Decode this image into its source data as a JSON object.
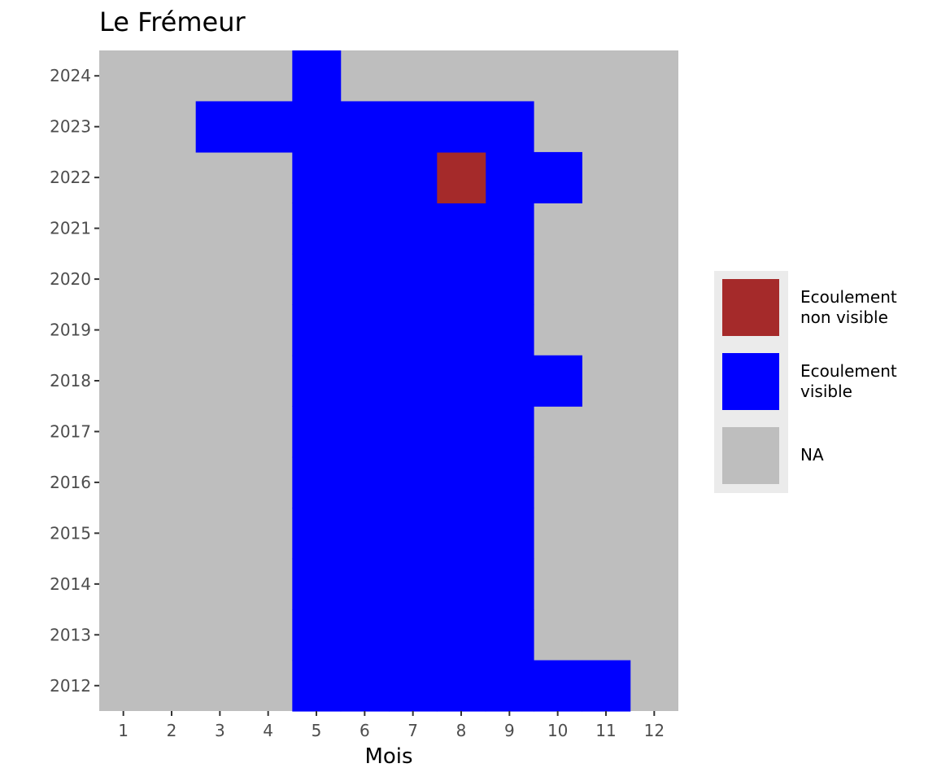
{
  "chart_data": {
    "type": "heatmap",
    "title": "Le Frémeur",
    "xlabel": "Mois",
    "ylabel": "",
    "x_categories": [
      1,
      2,
      3,
      4,
      5,
      6,
      7,
      8,
      9,
      10,
      11,
      12
    ],
    "y_categories": [
      2012,
      2013,
      2014,
      2015,
      2016,
      2017,
      2018,
      2019,
      2020,
      2021,
      2022,
      2023,
      2024
    ],
    "na_color": "#bebebe",
    "legend": [
      {
        "label_line1": "Ecoulement",
        "label_line2": "non visible",
        "color": "#a52a2a"
      },
      {
        "label_line1": "Ecoulement",
        "label_line2": "visible",
        "color": "#0000ff"
      },
      {
        "label_line1": "NA",
        "label_line2": "",
        "color": "#bebebe"
      }
    ],
    "cells": [
      {
        "year": 2012,
        "months_visible": [
          5,
          6,
          7,
          8,
          9,
          10,
          11
        ],
        "months_non_visible": []
      },
      {
        "year": 2013,
        "months_visible": [
          5,
          6,
          7,
          8,
          9
        ],
        "months_non_visible": []
      },
      {
        "year": 2014,
        "months_visible": [
          5,
          6,
          7,
          8,
          9
        ],
        "months_non_visible": []
      },
      {
        "year": 2015,
        "months_visible": [
          5,
          6,
          7,
          8,
          9
        ],
        "months_non_visible": []
      },
      {
        "year": 2016,
        "months_visible": [
          5,
          6,
          7,
          8,
          9
        ],
        "months_non_visible": []
      },
      {
        "year": 2017,
        "months_visible": [
          5,
          6,
          7,
          8,
          9
        ],
        "months_non_visible": []
      },
      {
        "year": 2018,
        "months_visible": [
          5,
          6,
          7,
          8,
          9,
          10
        ],
        "months_non_visible": []
      },
      {
        "year": 2019,
        "months_visible": [
          5,
          6,
          7,
          8,
          9
        ],
        "months_non_visible": []
      },
      {
        "year": 2020,
        "months_visible": [
          5,
          6,
          7,
          8,
          9
        ],
        "months_non_visible": []
      },
      {
        "year": 2021,
        "months_visible": [
          5,
          6,
          7,
          8,
          9
        ],
        "months_non_visible": []
      },
      {
        "year": 2022,
        "months_visible": [
          5,
          6,
          7,
          9,
          10
        ],
        "months_non_visible": [
          8
        ]
      },
      {
        "year": 2023,
        "months_visible": [
          3,
          4,
          5,
          6,
          7,
          8,
          9
        ],
        "months_non_visible": []
      },
      {
        "year": 2024,
        "months_visible": [
          5
        ],
        "months_non_visible": []
      }
    ]
  }
}
